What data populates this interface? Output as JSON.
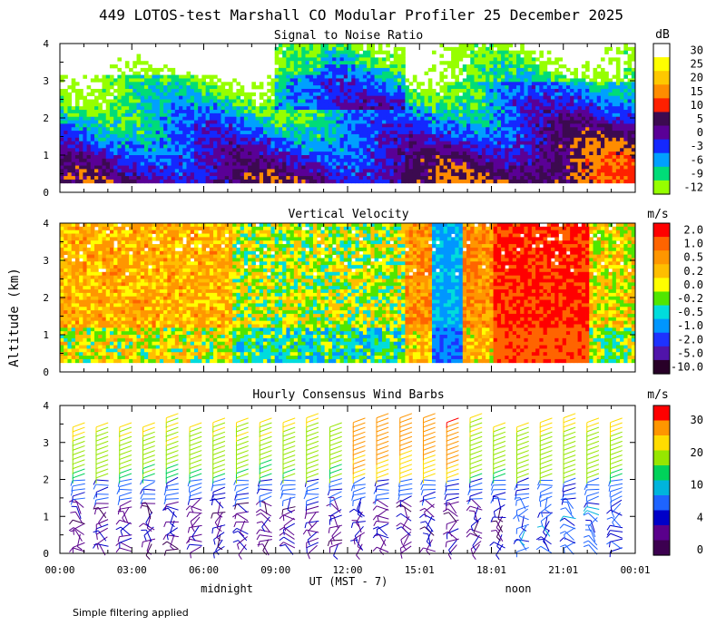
{
  "title": "449 LOTOS-test Marshall CO Modular Profiler 25 December 2025",
  "footer_note": "Simple filtering applied",
  "ylabel": "Altitude (km)",
  "xlabel": "UT  (MST - 7)",
  "day_labels": [
    "midnight",
    "noon"
  ],
  "chart_data": [
    {
      "type": "heatmap",
      "title": "Signal to Noise Ratio",
      "unit": "dB",
      "ylim": [
        0,
        4
      ],
      "yticks": [
        "0",
        "1",
        "2",
        "3",
        "4"
      ],
      "xticks": [
        "00:00",
        "03:00",
        "06:00",
        "09:00",
        "12:00",
        "15:01",
        "18:01",
        "21:01",
        "00:01"
      ],
      "colorbar": {
        "labels": [
          "30",
          "25",
          "20",
          "15",
          "10",
          "5",
          "0",
          "-3",
          "-6",
          "-9",
          "-12"
        ],
        "colors": [
          "#ffffff",
          "#ffff00",
          "#ffc800",
          "#ff8c00",
          "#ff2000",
          "#3c0a50",
          "#5a0096",
          "#1428ff",
          "#00a0ff",
          "#00dc78",
          "#96ff00"
        ]
      }
    },
    {
      "type": "heatmap",
      "title": "Vertical Velocity",
      "unit": "m/s",
      "ylim": [
        0,
        4
      ],
      "yticks": [
        "0",
        "1",
        "2",
        "3",
        "4"
      ],
      "colorbar": {
        "labels": [
          "2.0",
          "1.0",
          "0.5",
          "0.2",
          "0.0",
          "-0.2",
          "-0.5",
          "-1.0",
          "-2.0",
          "-5.0",
          "-10.0"
        ],
        "colors": [
          "#ff0000",
          "#ff6400",
          "#ff9600",
          "#ffbe00",
          "#ffff00",
          "#50e600",
          "#00dcdc",
          "#0096ff",
          "#1e32ff",
          "#5014aa",
          "#280028"
        ]
      }
    },
    {
      "type": "wind_barbs",
      "title": "Hourly Consensus Wind Barbs",
      "unit": "m/s",
      "ylim": [
        0,
        4
      ],
      "yticks": [
        "0",
        "1",
        "2",
        "3",
        "4"
      ],
      "colorbar": {
        "labels": [
          "30",
          "20",
          "10",
          "4",
          "0"
        ],
        "colors": [
          "#ff0000",
          "#ff9600",
          "#ffdc00",
          "#96e600",
          "#00d25a",
          "#00b4dc",
          "#1e64ff",
          "#0000c8",
          "#5a008c",
          "#3c0050"
        ]
      }
    }
  ]
}
